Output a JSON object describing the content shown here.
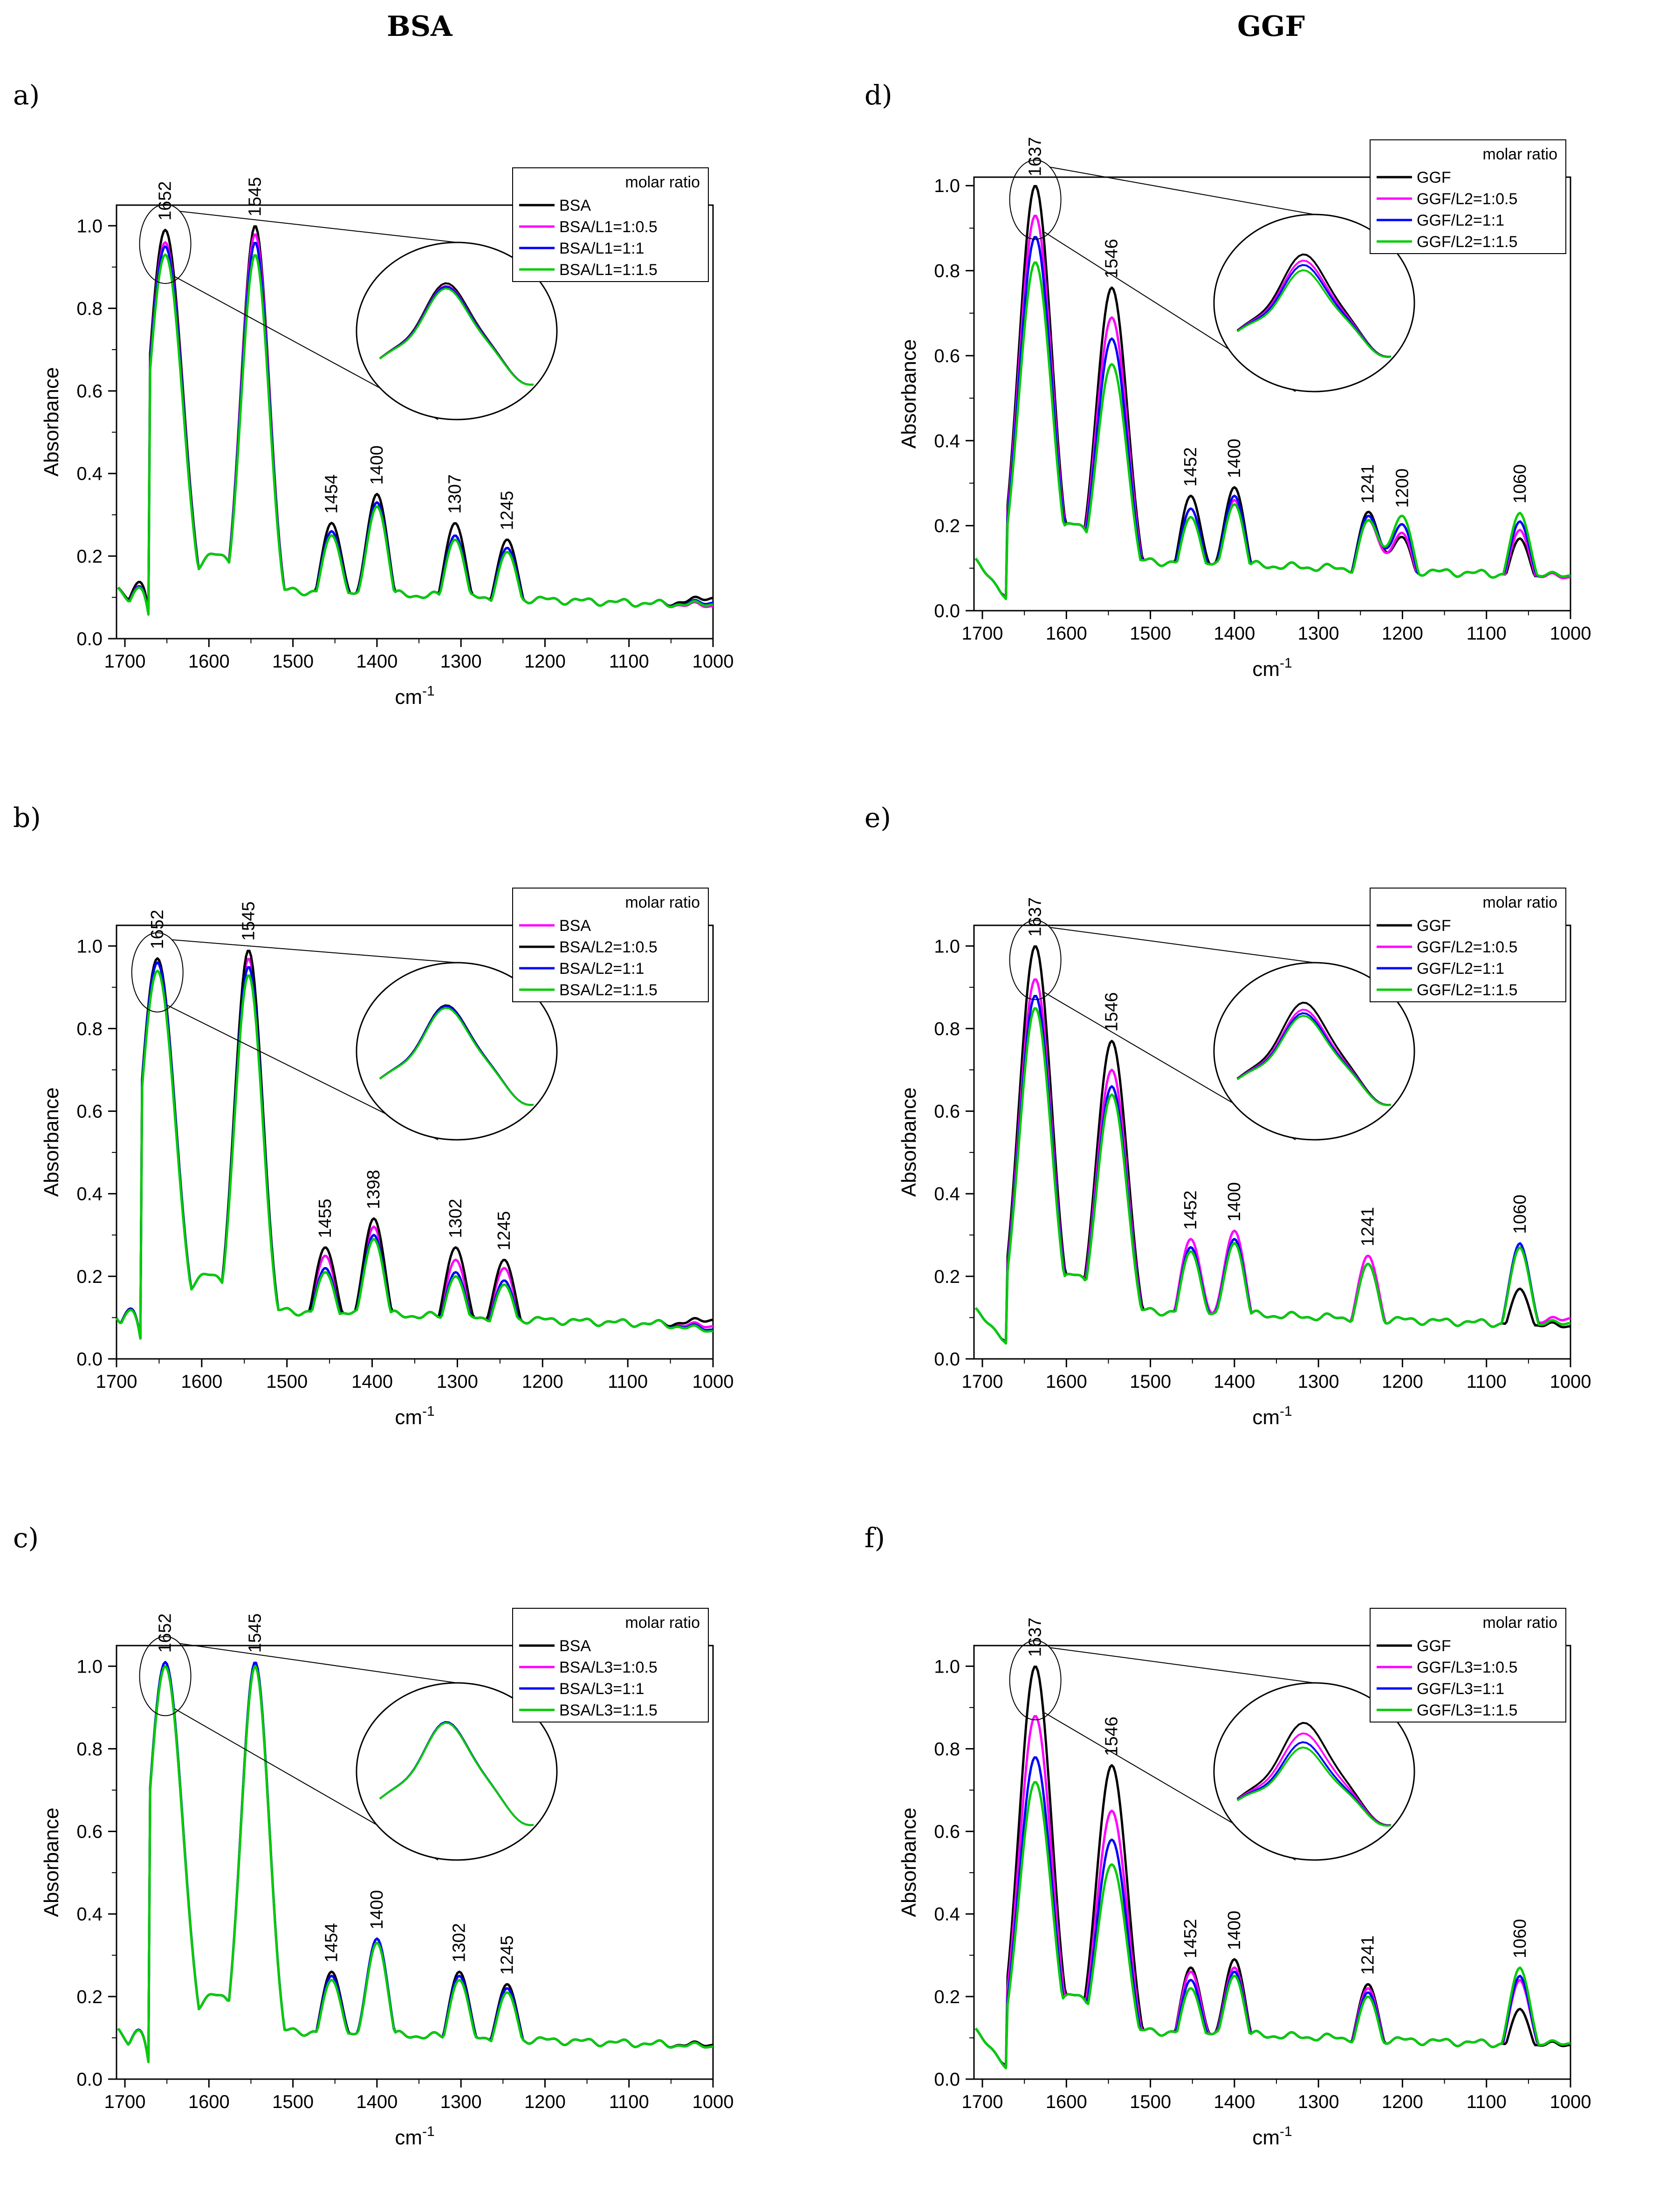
{
  "columns": {
    "left_title": "BSA",
    "right_title": "GGF"
  },
  "chart_data": [
    {
      "type": "line",
      "panel": "a)",
      "xlabel": "cm-1",
      "ylabel": "Absorbance",
      "xlim": [
        1710,
        1000
      ],
      "ylim": [
        0,
        1.05
      ],
      "xticks": [
        1700,
        1600,
        1500,
        1400,
        1300,
        1200,
        1100,
        1000
      ],
      "yticks": [
        0.0,
        0.2,
        0.4,
        0.6,
        0.8,
        1.0
      ],
      "legend_title": "molar ratio",
      "peak_labels": [
        "1652",
        "1545",
        "1454",
        "1400",
        "1307",
        "1245"
      ],
      "peak_positions": [
        1652,
        1545,
        1454,
        1400,
        1307,
        1245
      ],
      "series": [
        {
          "name": "BSA",
          "color": "#000000",
          "peaks": [
            0.99,
            1.0,
            0.28,
            0.35,
            0.28,
            0.24
          ],
          "ends": [
            0.04,
            0.13
          ]
        },
        {
          "name": "BSA/L1=1:0.5",
          "color": "#ff00ff",
          "peaks": [
            0.96,
            0.98,
            0.26,
            0.33,
            0.25,
            0.22
          ],
          "ends": [
            0.03,
            0.08
          ]
        },
        {
          "name": "BSA/L1=1:1",
          "color": "#0000ff",
          "peaks": [
            0.95,
            0.96,
            0.26,
            0.33,
            0.25,
            0.22
          ],
          "ends": [
            0.03,
            0.1
          ]
        },
        {
          "name": "BSA/L1=1:1.5",
          "color": "#00cc00",
          "peaks": [
            0.93,
            0.93,
            0.25,
            0.32,
            0.24,
            0.21
          ],
          "ends": [
            0.03,
            0.09
          ]
        }
      ]
    },
    {
      "type": "line",
      "panel": "b)",
      "xlabel": "cm-1",
      "ylabel": "Absorbance",
      "xlim": [
        1700,
        1000
      ],
      "ylim": [
        0,
        1.05
      ],
      "xticks": [
        1700,
        1600,
        1500,
        1400,
        1300,
        1200,
        1100,
        1000
      ],
      "yticks": [
        0.0,
        0.2,
        0.4,
        0.6,
        0.8,
        1.0
      ],
      "legend_title": "molar ratio",
      "peak_labels": [
        "1652",
        "1545",
        "1455",
        "1398",
        "1302",
        "1245"
      ],
      "peak_positions": [
        1652,
        1545,
        1455,
        1398,
        1302,
        1245
      ],
      "series": [
        {
          "name": "BSA",
          "color": "#ff00ff",
          "peaks": [
            0.97,
            0.97,
            0.25,
            0.32,
            0.24,
            0.22
          ],
          "ends": [
            0.02,
            0.08
          ]
        },
        {
          "name": "BSA/L2=1:0.5",
          "color": "#000000",
          "peaks": [
            0.97,
            0.99,
            0.27,
            0.34,
            0.27,
            0.24
          ],
          "ends": [
            0.02,
            0.12
          ]
        },
        {
          "name": "BSA/L2=1:1",
          "color": "#0000ff",
          "peaks": [
            0.96,
            0.95,
            0.22,
            0.3,
            0.21,
            0.19
          ],
          "ends": [
            0.02,
            0.06
          ]
        },
        {
          "name": "BSA/L2=1:1.5",
          "color": "#00cc00",
          "peaks": [
            0.94,
            0.93,
            0.21,
            0.29,
            0.2,
            0.18
          ],
          "ends": [
            0.02,
            0.05
          ]
        }
      ]
    },
    {
      "type": "line",
      "panel": "c)",
      "xlabel": "cm-1",
      "ylabel": "Absorbance",
      "xlim": [
        1710,
        1000
      ],
      "ylim": [
        0,
        1.05
      ],
      "xticks": [
        1700,
        1600,
        1500,
        1400,
        1300,
        1200,
        1100,
        1000
      ],
      "yticks": [
        0.0,
        0.2,
        0.4,
        0.6,
        0.8,
        1.0
      ],
      "legend_title": "molar ratio",
      "peak_labels": [
        "1652",
        "1545",
        "1454",
        "1400",
        "1302",
        "1245"
      ],
      "peak_positions": [
        1652,
        1545,
        1454,
        1400,
        1302,
        1245
      ],
      "series": [
        {
          "name": "BSA",
          "color": "#000000",
          "peaks": [
            1.01,
            1.01,
            0.26,
            0.34,
            0.26,
            0.23
          ],
          "ends": [
            0.01,
            0.09
          ]
        },
        {
          "name": "BSA/L3=1:0.5",
          "color": "#ff00ff",
          "peaks": [
            1.0,
            1.0,
            0.25,
            0.33,
            0.25,
            0.22
          ],
          "ends": [
            0.01,
            0.08
          ]
        },
        {
          "name": "BSA/L3=1:1",
          "color": "#0000ff",
          "peaks": [
            1.01,
            1.01,
            0.25,
            0.34,
            0.25,
            0.22
          ],
          "ends": [
            0.01,
            0.08
          ]
        },
        {
          "name": "BSA/L3=1:1.5",
          "color": "#00cc00",
          "peaks": [
            1.0,
            1.0,
            0.24,
            0.33,
            0.24,
            0.21
          ],
          "ends": [
            0.01,
            0.08
          ]
        }
      ]
    },
    {
      "type": "line",
      "panel": "d)",
      "xlabel": "cm-1",
      "ylabel": "Absorbance",
      "xlim": [
        1710,
        1000
      ],
      "ylim": [
        0,
        1.02
      ],
      "xticks": [
        1700,
        1600,
        1500,
        1400,
        1300,
        1200,
        1100,
        1000
      ],
      "yticks": [
        0.0,
        0.2,
        0.4,
        0.6,
        0.8,
        1.0
      ],
      "legend_title": "molar ratio",
      "peak_labels": [
        "1637",
        "1546",
        "1452",
        "1400",
        "1241",
        "1200",
        "1060"
      ],
      "peak_positions": [
        1637,
        1546,
        1452,
        1400,
        1241,
        1200,
        1060
      ],
      "series": [
        {
          "name": "GGF",
          "color": "#000000",
          "peaks": [
            1.0,
            0.76,
            0.27,
            0.29,
            0.23,
            0.17,
            0.17
          ],
          "ends": [
            0.02,
            0.08
          ]
        },
        {
          "name": "GGF/L2=1:0.5",
          "color": "#ff00ff",
          "peaks": [
            0.93,
            0.69,
            0.24,
            0.26,
            0.21,
            0.18,
            0.19
          ],
          "ends": [
            0.02,
            0.08
          ]
        },
        {
          "name": "GGF/L2=1:1",
          "color": "#0000ff",
          "peaks": [
            0.88,
            0.64,
            0.24,
            0.27,
            0.22,
            0.2,
            0.21
          ],
          "ends": [
            0.02,
            0.09
          ]
        },
        {
          "name": "GGF/L2=1:1.5",
          "color": "#00cc00",
          "peaks": [
            0.82,
            0.58,
            0.22,
            0.25,
            0.21,
            0.22,
            0.23
          ],
          "ends": [
            0.02,
            0.09
          ]
        }
      ]
    },
    {
      "type": "line",
      "panel": "e)",
      "xlabel": "cm-1",
      "ylabel": "Absorbance",
      "xlim": [
        1710,
        1000
      ],
      "ylim": [
        0,
        1.05
      ],
      "xticks": [
        1700,
        1600,
        1500,
        1400,
        1300,
        1200,
        1100,
        1000
      ],
      "yticks": [
        0.0,
        0.2,
        0.4,
        0.6,
        0.8,
        1.0
      ],
      "legend_title": "molar ratio",
      "peak_labels": [
        "1637",
        "1546",
        "1452",
        "1400",
        "1241",
        "1060"
      ],
      "peak_positions": [
        1637,
        1546,
        1452,
        1400,
        1241,
        1060
      ],
      "series": [
        {
          "name": "GGF",
          "color": "#000000",
          "peaks": [
            1.0,
            0.77,
            0.27,
            0.29,
            0.23,
            0.17
          ],
          "ends": [
            0.03,
            0.08
          ]
        },
        {
          "name": "GGF/L2=1:0.5",
          "color": "#ff00ff",
          "peaks": [
            0.92,
            0.7,
            0.29,
            0.31,
            0.25,
            0.27
          ],
          "ends": [
            0.03,
            0.13
          ]
        },
        {
          "name": "GGF/L2=1:1",
          "color": "#0000ff",
          "peaks": [
            0.88,
            0.66,
            0.27,
            0.29,
            0.23,
            0.28
          ],
          "ends": [
            0.03,
            0.1
          ]
        },
        {
          "name": "GGF/L2=1:1.5",
          "color": "#00cc00",
          "peaks": [
            0.85,
            0.64,
            0.26,
            0.28,
            0.23,
            0.27
          ],
          "ends": [
            0.03,
            0.1
          ]
        }
      ]
    },
    {
      "type": "line",
      "panel": "f)",
      "xlabel": "cm-1",
      "ylabel": "Absorbance",
      "xlim": [
        1710,
        1000
      ],
      "ylim": [
        0,
        1.05
      ],
      "xticks": [
        1700,
        1600,
        1500,
        1400,
        1300,
        1200,
        1100,
        1000
      ],
      "yticks": [
        0.0,
        0.2,
        0.4,
        0.6,
        0.8,
        1.0
      ],
      "legend_title": "molar ratio",
      "peak_labels": [
        "1637",
        "1546",
        "1452",
        "1400",
        "1241",
        "1060"
      ],
      "peak_positions": [
        1637,
        1546,
        1452,
        1400,
        1241,
        1060
      ],
      "series": [
        {
          "name": "GGF",
          "color": "#000000",
          "peaks": [
            1.0,
            0.76,
            0.27,
            0.29,
            0.23,
            0.17
          ],
          "ends": [
            0.02,
            0.09
          ]
        },
        {
          "name": "GGF/L3=1:0.5",
          "color": "#ff00ff",
          "peaks": [
            0.88,
            0.65,
            0.26,
            0.27,
            0.22,
            0.24
          ],
          "ends": [
            0.02,
            0.1
          ]
        },
        {
          "name": "GGF/L3=1:1",
          "color": "#0000ff",
          "peaks": [
            0.78,
            0.58,
            0.24,
            0.26,
            0.21,
            0.25
          ],
          "ends": [
            0.02,
            0.1
          ]
        },
        {
          "name": "GGF/L3=1:1.5",
          "color": "#00cc00",
          "peaks": [
            0.72,
            0.52,
            0.22,
            0.25,
            0.2,
            0.27
          ],
          "ends": [
            0.02,
            0.1
          ]
        }
      ]
    }
  ]
}
